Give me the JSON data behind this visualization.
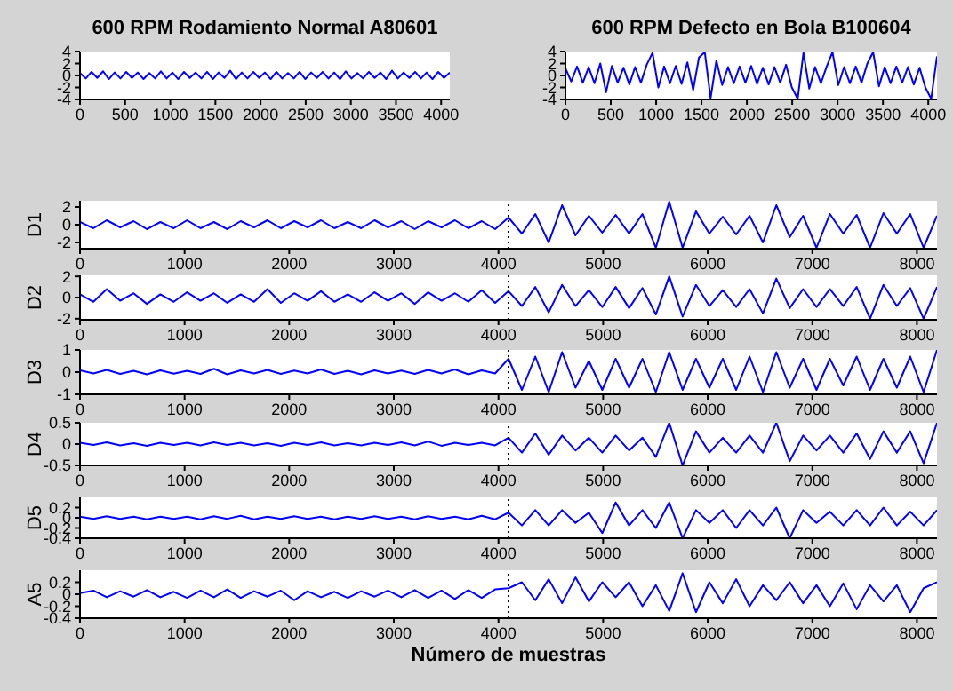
{
  "chart_data": [
    {
      "type": "line",
      "title": "600 RPM Rodamiento Normal A80601",
      "x": [
        0,
        64,
        128,
        192,
        256,
        320,
        384,
        448,
        512,
        576,
        640,
        704,
        768,
        832,
        896,
        960,
        1024,
        1088,
        1152,
        1216,
        1280,
        1344,
        1408,
        1472,
        1536,
        1600,
        1664,
        1728,
        1792,
        1856,
        1920,
        1984,
        2048,
        2112,
        2176,
        2240,
        2304,
        2368,
        2432,
        2496,
        2560,
        2624,
        2688,
        2752,
        2816,
        2880,
        2944,
        3008,
        3072,
        3136,
        3200,
        3264,
        3328,
        3392,
        3456,
        3520,
        3584,
        3648,
        3712,
        3776,
        3840,
        3904,
        3968,
        4032,
        4096
      ],
      "xlim": [
        0,
        4096
      ],
      "xticks": [
        0,
        500,
        1000,
        1500,
        2000,
        2500,
        3000,
        3500,
        4000
      ],
      "ylim": [
        -4,
        4
      ],
      "yticks": [
        -4,
        -2,
        0,
        2,
        4
      ],
      "series": [
        {
          "color": "#0000ff",
          "values": [
            0.4,
            -0.5,
            0.6,
            -0.4,
            0.7,
            -0.6,
            0.5,
            -0.5,
            0.6,
            -0.4,
            0.5,
            -0.6,
            0.4,
            -0.5,
            0.7,
            -0.5,
            0.5,
            -0.6,
            0.6,
            -0.4,
            0.5,
            -0.5,
            0.6,
            -0.6,
            0.5,
            -0.4,
            0.8,
            -0.6,
            0.5,
            -0.5,
            0.6,
            -0.4,
            0.5,
            -0.6,
            0.6,
            -0.5,
            0.4,
            -0.5,
            0.6,
            -0.6,
            0.5,
            -0.4,
            0.6,
            -0.5,
            0.5,
            -0.6,
            0.7,
            -0.5,
            0.4,
            -0.5,
            0.6,
            -0.4,
            0.5,
            -0.6,
            0.8,
            -0.5,
            0.5,
            -0.4,
            0.6,
            -0.5,
            0.5,
            -0.6,
            0.6,
            -0.4,
            0.5
          ]
        }
      ]
    },
    {
      "type": "line",
      "title": "600 RPM Defecto en Bola B100604",
      "x": [
        0,
        64,
        128,
        192,
        256,
        320,
        384,
        448,
        512,
        576,
        640,
        704,
        768,
        832,
        896,
        960,
        1024,
        1088,
        1152,
        1216,
        1280,
        1344,
        1408,
        1472,
        1536,
        1600,
        1664,
        1728,
        1792,
        1856,
        1920,
        1984,
        2048,
        2112,
        2176,
        2240,
        2304,
        2368,
        2432,
        2496,
        2560,
        2624,
        2688,
        2752,
        2816,
        2880,
        2944,
        3008,
        3072,
        3136,
        3200,
        3264,
        3328,
        3392,
        3456,
        3520,
        3584,
        3648,
        3712,
        3776,
        3840,
        3904,
        3968,
        4032,
        4096
      ],
      "xlim": [
        0,
        4096
      ],
      "xticks": [
        0,
        500,
        1000,
        1500,
        2000,
        2500,
        3000,
        3500,
        4000
      ],
      "ylim": [
        -4,
        4
      ],
      "yticks": [
        -4,
        -2,
        0,
        2,
        4
      ],
      "series": [
        {
          "color": "#0000ff",
          "values": [
            1.2,
            -1.0,
            1.5,
            -1.2,
            1.4,
            -1.3,
            2.0,
            -2.8,
            1.6,
            -1.2,
            1.3,
            -1.5,
            1.4,
            -1.2,
            1.8,
            3.8,
            -2.0,
            1.5,
            -1.3,
            1.6,
            -1.4,
            2.2,
            -2.4,
            3.0,
            3.9,
            -3.8,
            2.5,
            -1.6,
            1.4,
            -1.3,
            1.5,
            -1.2,
            1.6,
            -1.4,
            1.3,
            -1.5,
            1.4,
            -1.2,
            1.8,
            -2.0,
            -3.9,
            3.8,
            -2.2,
            1.4,
            -1.3,
            1.5,
            3.9,
            -1.6,
            1.4,
            -1.3,
            1.5,
            -1.2,
            2.0,
            3.9,
            -1.8,
            1.4,
            -1.3,
            1.5,
            -1.2,
            1.4,
            -1.5,
            1.3,
            -2.0,
            -3.9,
            3.2
          ]
        }
      ]
    },
    {
      "type": "line",
      "ylabel": "D1",
      "x": [
        0,
        128,
        256,
        384,
        512,
        640,
        768,
        896,
        1024,
        1152,
        1280,
        1408,
        1536,
        1664,
        1792,
        1920,
        2048,
        2176,
        2304,
        2432,
        2560,
        2688,
        2816,
        2944,
        3072,
        3200,
        3328,
        3456,
        3584,
        3712,
        3840,
        3968,
        4096,
        4224,
        4352,
        4480,
        4608,
        4736,
        4864,
        4992,
        5120,
        5248,
        5376,
        5504,
        5632,
        5760,
        5888,
        6016,
        6144,
        6272,
        6400,
        6528,
        6656,
        6784,
        6912,
        7040,
        7168,
        7296,
        7424,
        7552,
        7680,
        7808,
        7936,
        8064,
        8192
      ],
      "xlim": [
        0,
        8192
      ],
      "xticks": [
        0,
        1000,
        2000,
        3000,
        4000,
        5000,
        6000,
        7000,
        8000
      ],
      "ylim": [
        -2.7,
        2.7
      ],
      "yticks": [
        -2,
        0,
        2
      ],
      "ref_lines": [
        {
          "axis": "x",
          "value": 4096,
          "line_style": "dotted",
          "color": "#000000"
        }
      ],
      "series": [
        {
          "color": "#0000ff",
          "values": [
            0.3,
            -0.4,
            0.5,
            -0.3,
            0.4,
            -0.5,
            0.3,
            -0.4,
            0.5,
            -0.4,
            0.3,
            -0.5,
            0.4,
            -0.3,
            0.5,
            -0.4,
            0.4,
            -0.3,
            0.5,
            -0.4,
            0.3,
            -0.4,
            0.5,
            -0.3,
            0.4,
            -0.5,
            0.4,
            -0.3,
            0.5,
            -0.4,
            0.4,
            -0.5,
            0.8,
            -1.0,
            1.2,
            -2.0,
            2.2,
            -1.2,
            1.0,
            -0.9,
            1.1,
            -1.0,
            1.2,
            -2.6,
            2.6,
            -2.6,
            1.5,
            -1.0,
            0.9,
            -1.1,
            1.0,
            -2.0,
            2.2,
            -1.4,
            1.0,
            -2.6,
            1.2,
            -1.0,
            1.1,
            -2.6,
            1.3,
            -1.0,
            1.2,
            -2.6,
            1.0
          ]
        }
      ]
    },
    {
      "type": "line",
      "ylabel": "D2",
      "x": [
        0,
        128,
        256,
        384,
        512,
        640,
        768,
        896,
        1024,
        1152,
        1280,
        1408,
        1536,
        1664,
        1792,
        1920,
        2048,
        2176,
        2304,
        2432,
        2560,
        2688,
        2816,
        2944,
        3072,
        3200,
        3328,
        3456,
        3584,
        3712,
        3840,
        3968,
        4096,
        4224,
        4352,
        4480,
        4608,
        4736,
        4864,
        4992,
        5120,
        5248,
        5376,
        5504,
        5632,
        5760,
        5888,
        6016,
        6144,
        6272,
        6400,
        6528,
        6656,
        6784,
        6912,
        7040,
        7168,
        7296,
        7424,
        7552,
        7680,
        7808,
        7936,
        8064,
        8192
      ],
      "xlim": [
        0,
        8192
      ],
      "xticks": [
        0,
        1000,
        2000,
        3000,
        4000,
        5000,
        6000,
        7000,
        8000
      ],
      "ylim": [
        -2.1,
        2.1
      ],
      "yticks": [
        -2,
        0,
        2
      ],
      "ref_lines": [
        {
          "axis": "x",
          "value": 4096,
          "line_style": "dotted",
          "color": "#000000"
        }
      ],
      "series": [
        {
          "color": "#0000ff",
          "values": [
            0.3,
            -0.4,
            0.8,
            -0.3,
            0.4,
            -0.6,
            0.3,
            -0.4,
            0.5,
            -0.3,
            0.4,
            -0.5,
            0.3,
            -0.4,
            0.8,
            -0.5,
            0.4,
            -0.3,
            0.6,
            -0.4,
            0.3,
            -0.4,
            0.5,
            -0.3,
            0.4,
            -0.6,
            0.5,
            -0.3,
            0.4,
            -0.4,
            0.7,
            -0.5,
            0.6,
            -0.8,
            1.0,
            -1.4,
            1.2,
            -0.8,
            0.7,
            -0.9,
            1.0,
            -1.0,
            0.9,
            -1.6,
            2.0,
            -1.8,
            1.2,
            -0.8,
            0.7,
            -0.9,
            0.8,
            -1.5,
            1.8,
            -1.0,
            0.8,
            -0.9,
            0.8,
            -0.8,
            1.0,
            -2.0,
            1.2,
            -0.8,
            0.9,
            -2.0,
            1.0
          ]
        }
      ]
    },
    {
      "type": "line",
      "ylabel": "D3",
      "x": [
        0,
        128,
        256,
        384,
        512,
        640,
        768,
        896,
        1024,
        1152,
        1280,
        1408,
        1536,
        1664,
        1792,
        1920,
        2048,
        2176,
        2304,
        2432,
        2560,
        2688,
        2816,
        2944,
        3072,
        3200,
        3328,
        3456,
        3584,
        3712,
        3840,
        3968,
        4096,
        4224,
        4352,
        4480,
        4608,
        4736,
        4864,
        4992,
        5120,
        5248,
        5376,
        5504,
        5632,
        5760,
        5888,
        6016,
        6144,
        6272,
        6400,
        6528,
        6656,
        6784,
        6912,
        7040,
        7168,
        7296,
        7424,
        7552,
        7680,
        7808,
        7936,
        8064,
        8192
      ],
      "xlim": [
        0,
        8192
      ],
      "xticks": [
        0,
        1000,
        2000,
        3000,
        4000,
        5000,
        6000,
        7000,
        8000
      ],
      "ylim": [
        -1,
        1
      ],
      "yticks": [
        -1,
        0,
        1
      ],
      "ref_lines": [
        {
          "axis": "x",
          "value": 4096,
          "line_style": "dotted",
          "color": "#000000"
        }
      ],
      "series": [
        {
          "color": "#0000ff",
          "values": [
            0.08,
            -0.06,
            0.1,
            -0.08,
            0.06,
            -0.1,
            0.08,
            -0.07,
            0.06,
            -0.08,
            0.15,
            -0.1,
            0.08,
            -0.06,
            0.1,
            -0.08,
            0.07,
            -0.06,
            0.12,
            -0.08,
            0.06,
            -0.1,
            0.08,
            -0.06,
            0.07,
            -0.08,
            0.1,
            -0.06,
            0.12,
            -0.1,
            0.08,
            -0.06,
            0.6,
            -0.8,
            0.7,
            -0.9,
            0.9,
            -0.7,
            0.5,
            -0.8,
            0.6,
            -0.7,
            0.6,
            -0.9,
            0.9,
            -0.8,
            0.6,
            -0.7,
            0.6,
            -0.8,
            0.7,
            -0.9,
            0.9,
            -0.7,
            0.6,
            -0.8,
            0.6,
            -0.6,
            0.7,
            -0.8,
            0.6,
            -0.7,
            0.7,
            -0.9,
            1.0
          ]
        }
      ]
    },
    {
      "type": "line",
      "ylabel": "D4",
      "x": [
        0,
        128,
        256,
        384,
        512,
        640,
        768,
        896,
        1024,
        1152,
        1280,
        1408,
        1536,
        1664,
        1792,
        1920,
        2048,
        2176,
        2304,
        2432,
        2560,
        2688,
        2816,
        2944,
        3072,
        3200,
        3328,
        3456,
        3584,
        3712,
        3840,
        3968,
        4096,
        4224,
        4352,
        4480,
        4608,
        4736,
        4864,
        4992,
        5120,
        5248,
        5376,
        5504,
        5632,
        5760,
        5888,
        6016,
        6144,
        6272,
        6400,
        6528,
        6656,
        6784,
        6912,
        7040,
        7168,
        7296,
        7424,
        7552,
        7680,
        7808,
        7936,
        8064,
        8192
      ],
      "xlim": [
        0,
        8192
      ],
      "xticks": [
        0,
        1000,
        2000,
        3000,
        4000,
        5000,
        6000,
        7000,
        8000
      ],
      "ylim": [
        -0.5,
        0.5
      ],
      "yticks": [
        -0.5,
        0,
        0.5
      ],
      "ref_lines": [
        {
          "axis": "x",
          "value": 4096,
          "line_style": "dotted",
          "color": "#000000"
        }
      ],
      "series": [
        {
          "color": "#0000ff",
          "values": [
            0.03,
            -0.02,
            0.04,
            -0.03,
            0.02,
            -0.04,
            0.03,
            -0.02,
            0.03,
            -0.03,
            0.04,
            -0.02,
            0.03,
            -0.03,
            0.02,
            -0.04,
            0.03,
            -0.02,
            0.04,
            -0.03,
            0.02,
            -0.03,
            0.03,
            -0.02,
            0.04,
            -0.03,
            0.06,
            -0.04,
            0.03,
            -0.02,
            0.03,
            -0.03,
            0.15,
            -0.2,
            0.25,
            -0.25,
            0.2,
            -0.15,
            0.15,
            -0.2,
            0.2,
            -0.15,
            0.15,
            -0.3,
            0.5,
            -0.5,
            0.3,
            -0.2,
            0.15,
            -0.2,
            0.2,
            -0.2,
            0.5,
            -0.4,
            0.2,
            -0.15,
            0.2,
            -0.2,
            0.25,
            -0.35,
            0.3,
            -0.2,
            0.3,
            -0.45,
            0.5
          ]
        }
      ]
    },
    {
      "type": "line",
      "ylabel": "D5",
      "x": [
        0,
        128,
        256,
        384,
        512,
        640,
        768,
        896,
        1024,
        1152,
        1280,
        1408,
        1536,
        1664,
        1792,
        1920,
        2048,
        2176,
        2304,
        2432,
        2560,
        2688,
        2816,
        2944,
        3072,
        3200,
        3328,
        3456,
        3584,
        3712,
        3840,
        3968,
        4096,
        4224,
        4352,
        4480,
        4608,
        4736,
        4864,
        4992,
        5120,
        5248,
        5376,
        5504,
        5632,
        5760,
        5888,
        6016,
        6144,
        6272,
        6400,
        6528,
        6656,
        6784,
        6912,
        7040,
        7168,
        7296,
        7424,
        7552,
        7680,
        7808,
        7936,
        8064,
        8192
      ],
      "xlim": [
        0,
        8192
      ],
      "xticks": [
        0,
        1000,
        2000,
        3000,
        4000,
        5000,
        6000,
        7000,
        8000
      ],
      "ylim": [
        -0.4,
        0.4
      ],
      "yticks": [
        -0.4,
        -0.2,
        0,
        0.2
      ],
      "ref_lines": [
        {
          "axis": "x",
          "value": 4096,
          "line_style": "dotted",
          "color": "#000000"
        }
      ],
      "series": [
        {
          "color": "#0000ff",
          "values": [
            0.02,
            -0.02,
            0.03,
            -0.02,
            0.02,
            -0.03,
            0.02,
            -0.02,
            0.02,
            -0.03,
            0.03,
            -0.02,
            0.04,
            -0.03,
            0.02,
            -0.02,
            0.03,
            -0.02,
            0.02,
            -0.03,
            0.02,
            -0.02,
            0.03,
            -0.02,
            0.02,
            -0.03,
            0.03,
            -0.02,
            0.02,
            -0.03,
            0.04,
            -0.03,
            0.1,
            -0.15,
            0.15,
            -0.15,
            0.15,
            -0.1,
            0.1,
            -0.3,
            0.3,
            -0.15,
            0.15,
            -0.2,
            0.3,
            -0.4,
            0.15,
            -0.1,
            0.15,
            -0.2,
            0.15,
            -0.15,
            0.2,
            -0.4,
            0.15,
            -0.1,
            0.12,
            -0.15,
            0.15,
            -0.15,
            0.2,
            -0.15,
            0.12,
            -0.15,
            0.15
          ]
        }
      ]
    },
    {
      "type": "line",
      "ylabel": "A5",
      "xlabel": "Número de muestras",
      "x": [
        0,
        128,
        256,
        384,
        512,
        640,
        768,
        896,
        1024,
        1152,
        1280,
        1408,
        1536,
        1664,
        1792,
        1920,
        2048,
        2176,
        2304,
        2432,
        2560,
        2688,
        2816,
        2944,
        3072,
        3200,
        3328,
        3456,
        3584,
        3712,
        3840,
        3968,
        4096,
        4224,
        4352,
        4480,
        4608,
        4736,
        4864,
        4992,
        5120,
        5248,
        5376,
        5504,
        5632,
        5760,
        5888,
        6016,
        6144,
        6272,
        6400,
        6528,
        6656,
        6784,
        6912,
        7040,
        7168,
        7296,
        7424,
        7552,
        7680,
        7808,
        7936,
        8064,
        8192
      ],
      "xlim": [
        0,
        8192
      ],
      "xticks": [
        0,
        1000,
        2000,
        3000,
        4000,
        5000,
        6000,
        7000,
        8000
      ],
      "ylim": [
        -0.4,
        0.4
      ],
      "yticks": [
        -0.4,
        -0.2,
        0,
        0.2
      ],
      "ref_lines": [
        {
          "axis": "x",
          "value": 4096,
          "line_style": "dotted",
          "color": "#000000"
        }
      ],
      "series": [
        {
          "color": "#0000ff",
          "values": [
            0.02,
            0.06,
            -0.05,
            0.05,
            -0.04,
            0.07,
            -0.05,
            0.04,
            -0.06,
            0.06,
            -0.05,
            0.08,
            -0.06,
            0.05,
            -0.04,
            0.06,
            -0.1,
            0.05,
            -0.05,
            0.04,
            -0.06,
            0.05,
            -0.04,
            0.06,
            -0.05,
            0.07,
            -0.06,
            0.06,
            -0.08,
            0.07,
            -0.06,
            0.08,
            0.1,
            0.2,
            -0.1,
            0.25,
            -0.15,
            0.28,
            -0.12,
            0.2,
            -0.05,
            0.2,
            -0.2,
            0.15,
            -0.28,
            0.35,
            -0.3,
            0.2,
            -0.15,
            0.25,
            -0.2,
            0.15,
            -0.1,
            0.2,
            -0.15,
            0.15,
            -0.2,
            0.18,
            -0.25,
            0.15,
            -0.12,
            0.15,
            -0.3,
            0.1,
            0.2
          ]
        }
      ]
    }
  ]
}
